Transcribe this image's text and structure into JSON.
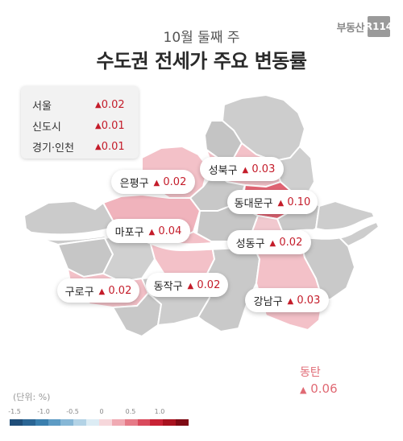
{
  "brand": {
    "text": "부동산",
    "logo": "R114"
  },
  "header": {
    "subtitle": "10월 둘째 주",
    "title": "수도권 전세가 주요 변동률"
  },
  "summary": [
    {
      "name": "서울",
      "value": "0.02"
    },
    {
      "name": "신도시",
      "value": "0.01"
    },
    {
      "name": "경기·인천",
      "value": "0.01"
    }
  ],
  "districts": {
    "eunpyeong": {
      "name": "은평구",
      "value": "0.02"
    },
    "seongbuk": {
      "name": "성북구",
      "value": "0.03"
    },
    "dongdaemun": {
      "name": "동대문구",
      "value": "0.10"
    },
    "mapo": {
      "name": "마포구",
      "value": "0.04"
    },
    "seongdong": {
      "name": "성동구",
      "value": "0.02"
    },
    "guro": {
      "name": "구로구",
      "value": "0.02"
    },
    "dongjak": {
      "name": "동작구",
      "value": "0.02"
    },
    "gangnam": {
      "name": "강남구",
      "value": "0.03"
    }
  },
  "dongtan": {
    "name": "동탄",
    "value": "0.06"
  },
  "unit": "(단위: %)",
  "legend": {
    "ticks": [
      "-1.5",
      "-1.0",
      "-0.5",
      "0",
      "0.5",
      "1.0"
    ],
    "colors": [
      "#1f4e79",
      "#2a6594",
      "#3a7fae",
      "#5d9bc4",
      "#86b7d6",
      "#b3d3e6",
      "#dcecf4",
      "#f6d7db",
      "#f0aab3",
      "#e67a87",
      "#d94a5c",
      "#c82235",
      "#a8121f",
      "#7e0a14"
    ]
  },
  "up_marker": "▲",
  "colors": {
    "up": "#c41c2a",
    "gray_district": "#c9c9c9",
    "light_pink": "#f3c1c8",
    "mid_pink": "#ec9aa6",
    "strong_pink": "#e06473"
  }
}
